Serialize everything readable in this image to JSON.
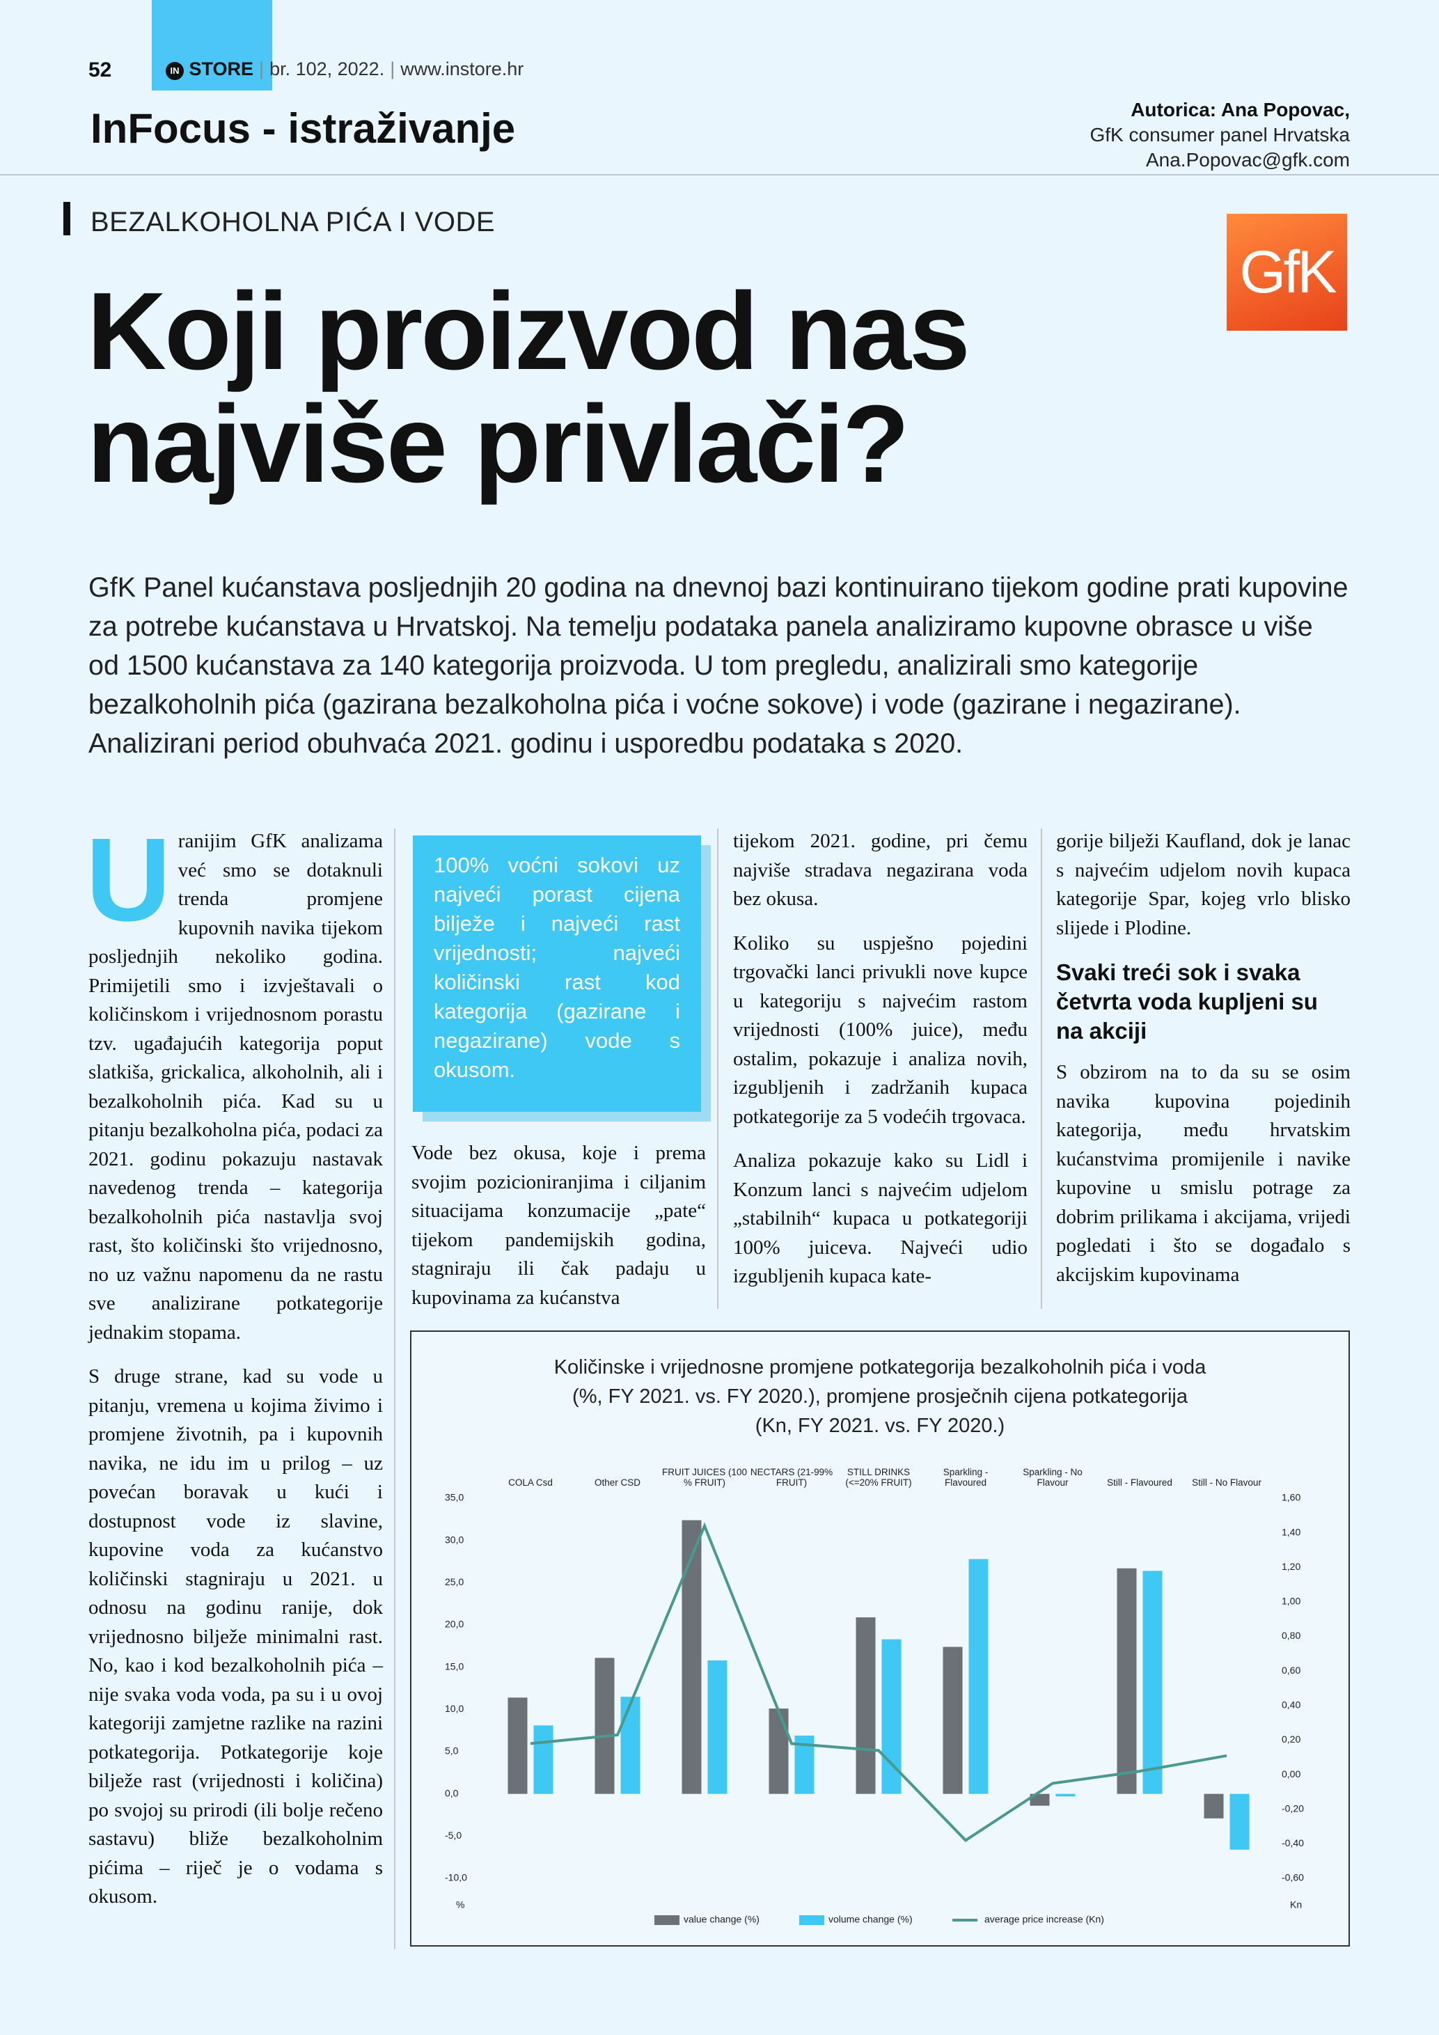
{
  "header": {
    "page_number": "52",
    "brand_badge": "IN",
    "brand": "STORE",
    "issue": "br. 102, 2022.",
    "website": "www.instore.hr",
    "section": "InFocus - istraživanje",
    "author": "Autorica: Ana Popovac,",
    "author_org": "GfK consumer panel Hrvatska",
    "author_email": "Ana.Popovac@gfk.com"
  },
  "logo": "GfK",
  "kicker": "BEZALKOHOLNA PIĆA I VODE",
  "title": [
    "Koji proizvod nas",
    "najviše privlači?"
  ],
  "intro": "GfK Panel kućanstava posljednjih 20 godina na dnevnoj bazi kontinuirano tijekom godine prati kupovine za potrebe kućanstava u Hrvatskoj. Na temelju podataka panela analiziramo kupovne obrasce u više od 1500 kućanstava za 140 kategorija proizvoda. U tom pregledu, analizirali smo kategorije bezalkoholnih pića (gazirana bezalkoholna pića i voćne sokove) i vode (gazirane i negazirane). Analizirani period obuhvaća 2021. godinu i usporedbu podataka s 2020.",
  "columns": {
    "col1": {
      "drop_cap": "U",
      "paragraphs": [
        "ranijim GfK analizama već smo se dotaknuli trenda promjene kupovnih navika tijekom posljednjih nekoliko godina. Primijetili smo i izvještavali o količinskom i vrijednosnom porastu tzv. ugađajućih kategorija poput slatkiša, grickalica, alkoholnih, ali i bezalkoholnih pića. Kad su u pitanju bezalkoholna pića, podaci za 2021. godinu pokazuju nastavak navedenog trenda – kategorija bezalkoholnih pića nastavlja svoj rast, što količinski što vrijednosno, no uz važnu napomenu da ne rastu sve analizirane potkategorije jednakim stopama.",
        "S druge strane, kad su vode u pitanju, vremena u kojima živimo i promjene životnih, pa i kupovnih navika, ne idu im u prilog – uz povećan boravak u kući i dostupnost vode iz slavine, kupovine voda za kućanstvo količinski stagniraju u 2021. u odnosu na godinu ranije, dok vrijednosno bilježe minimalni rast. No, kao i kod bezalkoholnih pića – nije svaka voda voda, pa su i u ovoj kategoriji zamjetne razlike na razini potkategorija. Potkategorije koje bilježe rast (vrijednosti i količina) po svojoj su prirodi (ili bolje rečeno sastavu) bliže bezalkoholnim pićima – riječ je o vodama s okusom."
      ]
    },
    "col2": {
      "callout": "100% voćni sokovi uz najveći porast cijena bilježe i najveći rast vrijednosti; najveći količinski rast kod kategorija (gazirane i negazirane) vode s okusom.",
      "paragraphs": [
        "Vode bez okusa, koje i prema svojim pozicioniranjima i ciljanim situacijama konzumacije „pate“ tijekom pandemijskih godina, stagniraju ili čak padaju u kupovinama za kućanstva"
      ]
    },
    "col3": {
      "paragraphs": [
        "tijekom 2021. godine, pri čemu najviše stradava negazirana voda bez okusa.",
        "Koliko su uspješno pojedini trgovački lanci privukli nove kupce u kategoriju s najvećim rastom vrijednosti (100% juice), među ostalim, pokazuje i analiza novih, izgubljenih i zadržanih kupaca potkategorije za 5 vodećih trgovaca.",
        "Analiza pokazuje kako su Lidl i Konzum lanci s najvećim udjelom „stabilnih“ kupaca u potkategoriji 100% juiceva. Najveći udio izgubljenih kupaca kate-"
      ]
    },
    "col4": {
      "paragraphs": [
        "gorije bilježi Kaufland, dok je lanac s najvećim udjelom novih kupaca kategorije Spar, kojeg vrlo blisko slijede i Plodine."
      ],
      "subheading": "Svaki treći sok i svaka četvrta voda kupljeni su na akciji",
      "paragraphs_after": [
        "S obzirom na to da su se osim navika kupovina pojedinih kategorija, među hrvatskim kućanstvima promijenile i navike kupovine u smislu potrage za dobrim prilikama i akcijama, vrijedi pogledati i što se događalo s akcijskim kupovinama"
      ]
    }
  },
  "chart_data": {
    "type": "bar_line",
    "title": [
      "Količinske i vrijednosne promjene potkategorija bezalkoholnih pića i voda",
      "(%, FY 2021. vs. FY 2020.), promjene prosječnih cijena potkategorija",
      "(Kn, FY 2021. vs. FY 2020.)"
    ],
    "categories": [
      "COLA Csd",
      "Other CSD",
      "FRUIT JUICES (100 % FRUIT)",
      "NECTARS (21-99% FRUIT)",
      "STILL DRINKS (<=20% FRUIT)",
      "Sparkling - Flavoured",
      "Sparkling - No Flavour",
      "Still - Flavoured",
      "Still - No Flavour"
    ],
    "series": [
      {
        "name": "value change (%)",
        "color": "#6b7176",
        "values": [
          11.4,
          16.1,
          32.4,
          10.1,
          20.9,
          17.4,
          -1.4,
          26.7,
          -2.9
        ]
      },
      {
        "name": "volume change (%)",
        "color": "#3fc8f4",
        "values": [
          8.1,
          11.5,
          15.8,
          6.9,
          18.3,
          27.8,
          -0.3,
          26.4,
          -6.6
        ]
      },
      {
        "name": "average price increase (Kn)",
        "color": "#4a9990",
        "axis": "y2",
        "values": [
          0.18,
          0.23,
          1.44,
          0.18,
          0.14,
          -0.38,
          -0.05,
          0.02,
          0.11
        ]
      }
    ],
    "ylim": [
      -10,
      35
    ],
    "yticks": [
      {
        "value": 35,
        "label": "35,0"
      },
      {
        "value": 30,
        "label": "30,0"
      },
      {
        "value": 25,
        "label": "25,0"
      },
      {
        "value": 20,
        "label": "20,0"
      },
      {
        "value": 15,
        "label": "15,0"
      },
      {
        "value": 10,
        "label": "10,0"
      },
      {
        "value": 5,
        "label": "5,0"
      },
      {
        "value": 0,
        "label": "0,0"
      },
      {
        "value": -5,
        "label": "-5,0"
      },
      {
        "value": -10,
        "label": "-10,0"
      }
    ],
    "y2lim": [
      -0.6,
      1.6
    ],
    "y2ticks": [
      {
        "value": 1.6,
        "label": "1,60"
      },
      {
        "value": 1.4,
        "label": "1,40"
      },
      {
        "value": 1.2,
        "label": "1,20"
      },
      {
        "value": 1.0,
        "label": "1,00"
      },
      {
        "value": 0.8,
        "label": "0,80"
      },
      {
        "value": 0.6,
        "label": "0,60"
      },
      {
        "value": 0.4,
        "label": "0,40"
      },
      {
        "value": 0.2,
        "label": "0,20"
      },
      {
        "value": 0,
        "label": "0,00"
      },
      {
        "value": -0.2,
        "label": "-0,20"
      },
      {
        "value": -0.4,
        "label": "-0,40"
      },
      {
        "value": -0.6,
        "label": "-0,60"
      }
    ],
    "y_unit": "%",
    "y2_unit": "Kn",
    "grid": false,
    "legend": "bottom"
  }
}
